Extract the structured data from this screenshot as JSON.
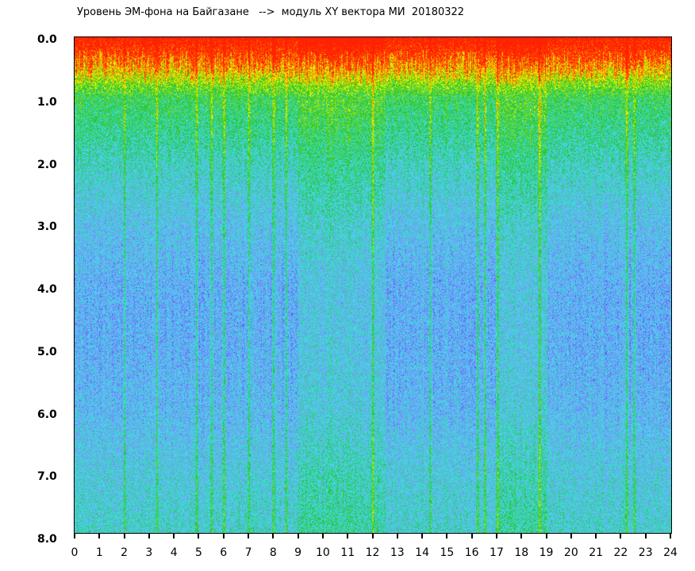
{
  "chart_data": {
    "type": "heatmap",
    "title": "Уровень ЭМ-фона на Байгазане   -->  модуль XY вектора МИ  20180322",
    "xlabel": "",
    "ylabel": "",
    "xlim": [
      0,
      24
    ],
    "ylim": [
      0,
      8
    ],
    "y_inverted": true,
    "x_ticks": [
      "0",
      "1",
      "2",
      "3",
      "4",
      "5",
      "6",
      "7",
      "8",
      "9",
      "10",
      "11",
      "12",
      "13",
      "14",
      "15",
      "16",
      "17",
      "18",
      "19",
      "20",
      "21",
      "22",
      "23",
      "24"
    ],
    "y_ticks": [
      "0.0",
      "1.0",
      "2.0",
      "3.0",
      "4.0",
      "5.0",
      "6.0",
      "7.0",
      "8.0"
    ],
    "colormap": [
      "#1010e0",
      "#8090ff",
      "#40e0e8",
      "#20c020",
      "#ffff00",
      "#ff2000"
    ],
    "intensity_by_depth": [
      [
        0.0,
        0.95
      ],
      [
        0.5,
        0.8
      ],
      [
        1.0,
        0.55
      ],
      [
        2.0,
        0.42
      ],
      [
        3.0,
        0.33
      ],
      [
        4.0,
        0.28
      ],
      [
        5.0,
        0.28
      ],
      [
        6.0,
        0.3
      ],
      [
        7.0,
        0.36
      ],
      [
        8.0,
        0.4
      ]
    ],
    "bright_streaks_hours": [
      2.0,
      3.3,
      4.9,
      5.5,
      6.0,
      7.0,
      8.0,
      8.5,
      12.0,
      14.3,
      16.2,
      16.5,
      17.0,
      18.7,
      22.2,
      22.5
    ],
    "brighter_intervals_hours": [
      [
        9,
        12.5
      ],
      [
        17,
        19
      ]
    ]
  }
}
